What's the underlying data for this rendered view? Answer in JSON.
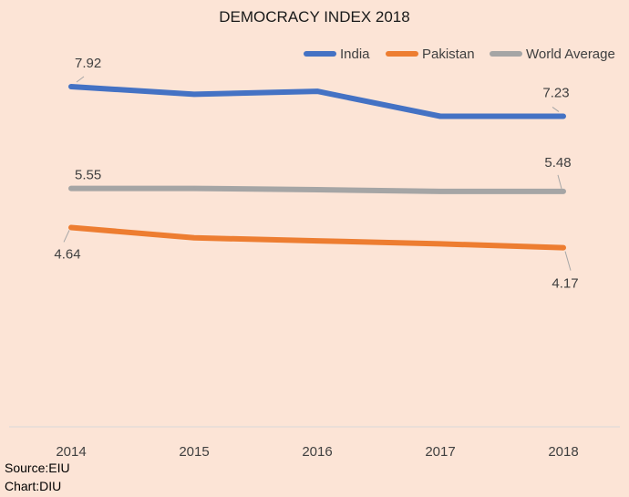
{
  "chart_data": {
    "type": "line",
    "title": "DEMOCRACY INDEX 2018",
    "xlabel": "",
    "ylabel": "",
    "categories": [
      "2014",
      "2015",
      "2016",
      "2017",
      "2018"
    ],
    "ylim": [
      0,
      9
    ],
    "grid": false,
    "legend_position": "top-right",
    "series": [
      {
        "name": "India",
        "color": "#4472c4",
        "values": [
          7.92,
          7.74,
          7.81,
          7.23,
          7.23
        ]
      },
      {
        "name": "Pakistan",
        "color": "#ed7d31",
        "values": [
          4.64,
          4.4,
          4.33,
          4.26,
          4.17
        ]
      },
      {
        "name": "World Average",
        "color": "#a5a5a5",
        "values": [
          5.55,
          5.55,
          5.52,
          5.48,
          5.48
        ]
      }
    ],
    "data_labels": [
      {
        "series": 0,
        "index": 0,
        "text": "7.92"
      },
      {
        "series": 0,
        "index": 4,
        "text": "7.23"
      },
      {
        "series": 2,
        "index": 0,
        "text": "5.55"
      },
      {
        "series": 2,
        "index": 4,
        "text": "5.48"
      },
      {
        "series": 1,
        "index": 0,
        "text": "4.64"
      },
      {
        "series": 1,
        "index": 4,
        "text": "4.17"
      }
    ]
  },
  "footer": {
    "source": "Source:EIU",
    "credit": "Chart:DIU"
  }
}
